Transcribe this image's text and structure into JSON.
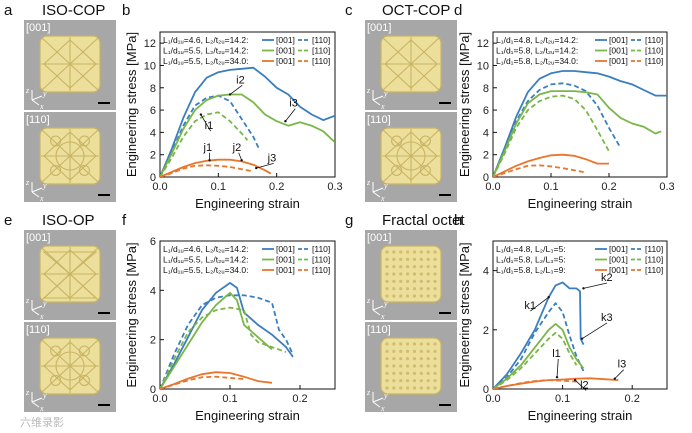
{
  "colors": {
    "blue": "#3a7ebf",
    "green": "#7ab648",
    "orange": "#e8762c",
    "photo_bg": "#a7a7a7",
    "lattice_light": "#ecdf9c",
    "lattice_dark": "#c9b463"
  },
  "photos": [
    {
      "letter": "a",
      "title": "ISO-COP",
      "views": [
        "[001]",
        "[110]"
      ],
      "axes": [
        "z",
        "y",
        "x"
      ]
    },
    {
      "letter": "c",
      "title": "OCT-COP",
      "views": [
        "[001]",
        "[110]"
      ],
      "axes": [
        "z",
        "y",
        "x"
      ]
    },
    {
      "letter": "e",
      "title": "ISO-OP",
      "views": [
        "[001]",
        "[110]"
      ],
      "axes": [
        "z",
        "y",
        "x"
      ]
    },
    {
      "letter": "g",
      "title": "Fractal octet",
      "views": [
        "[001]",
        "[110]"
      ],
      "axes": [
        "z",
        "y",
        "x"
      ]
    }
  ],
  "chart_data": [
    {
      "letter": "b",
      "type": "line",
      "xlabel": "Engineering strain",
      "ylabel": "Engineering stress [MPa]",
      "xlim": [
        0,
        0.3
      ],
      "ylim": [
        0,
        13
      ],
      "xticks": [
        "0.0",
        "0.1",
        "0.2",
        "0.3"
      ],
      "yticks": [
        "0",
        "2",
        "4",
        "6",
        "8",
        "10",
        "12"
      ],
      "legend": [
        {
          "label": "L₁/d₁ᵤ=4.6, L₂/t₂ᵤ=14.2:",
          "c": "blue"
        },
        {
          "label": "L₁/d₁ᵤ=5.5, L₂/t₂ᵤ=14.2:",
          "c": "green"
        },
        {
          "label": "L₁/d₁ᵤ=5.5, L₂/t₂ᵤ=34.0:",
          "c": "orange"
        }
      ],
      "legend_solid": "[001]",
      "legend_dashed": "[110]",
      "series": [
        {
          "name": "blue [001]",
          "c": "blue",
          "dash": false,
          "x": [
            0,
            0.02,
            0.04,
            0.06,
            0.08,
            0.1,
            0.12,
            0.14,
            0.16,
            0.18,
            0.2,
            0.22,
            0.24,
            0.26,
            0.28,
            0.3
          ],
          "y": [
            0,
            2.5,
            5.3,
            7.6,
            8.9,
            9.4,
            9.6,
            9.7,
            9.8,
            9.0,
            8.0,
            7.4,
            6.3,
            5.6,
            5.1,
            5.5
          ]
        },
        {
          "name": "blue [110]",
          "c": "blue",
          "dash": true,
          "x": [
            0,
            0.02,
            0.04,
            0.06,
            0.08,
            0.1,
            0.12,
            0.14,
            0.16,
            0.17
          ],
          "y": [
            0,
            2.2,
            4.6,
            6.4,
            7.1,
            7.3,
            6.8,
            5.2,
            3.6,
            2.5
          ]
        },
        {
          "name": "green [001]",
          "c": "green",
          "dash": false,
          "x": [
            0,
            0.02,
            0.04,
            0.06,
            0.08,
            0.1,
            0.12,
            0.14,
            0.16,
            0.18,
            0.2,
            0.22,
            0.24,
            0.26,
            0.28,
            0.3
          ],
          "y": [
            0,
            2.1,
            4.3,
            6.0,
            6.9,
            7.3,
            7.4,
            7.4,
            6.7,
            5.6,
            5.0,
            4.6,
            4.9,
            4.6,
            4.1,
            3.1
          ]
        },
        {
          "name": "green [110]",
          "c": "green",
          "dash": true,
          "x": [
            0,
            0.02,
            0.04,
            0.06,
            0.08,
            0.1,
            0.12,
            0.14,
            0.15
          ],
          "y": [
            0,
            1.7,
            3.6,
            5.0,
            5.6,
            5.8,
            5.0,
            3.9,
            3.3
          ]
        },
        {
          "name": "orange [001]",
          "c": "orange",
          "dash": false,
          "x": [
            0,
            0.02,
            0.04,
            0.06,
            0.08,
            0.1,
            0.12,
            0.14,
            0.16,
            0.18,
            0.19
          ],
          "y": [
            0,
            0.45,
            0.9,
            1.25,
            1.45,
            1.55,
            1.55,
            1.4,
            1.1,
            0.6,
            0.3
          ]
        },
        {
          "name": "orange [110]",
          "c": "orange",
          "dash": true,
          "x": [
            0,
            0.02,
            0.04,
            0.06,
            0.08,
            0.1,
            0.12,
            0.14,
            0.16
          ],
          "y": [
            0,
            0.35,
            0.75,
            1.0,
            1.05,
            1.0,
            0.9,
            0.7,
            0.5
          ]
        }
      ],
      "annotations": [
        {
          "text": "i2",
          "x": 0.134,
          "y": 8.4,
          "ax": 0.12,
          "ay": 7.4
        },
        {
          "text": "i3",
          "x": 0.225,
          "y": 6.3,
          "ax": 0.215,
          "ay": 5.0
        },
        {
          "text": "i1",
          "x": 0.08,
          "y": 4.3,
          "ax": 0.07,
          "ay": 5.6
        },
        {
          "text": "j1",
          "x": 0.078,
          "y": 2.35,
          "ax": 0.085,
          "ay": 1.5
        },
        {
          "text": "j2",
          "x": 0.128,
          "y": 2.35,
          "ax": 0.14,
          "ay": 1.5
        },
        {
          "text": "j3",
          "x": 0.188,
          "y": 1.4,
          "ax": 0.165,
          "ay": 0.8
        }
      ]
    },
    {
      "letter": "d",
      "type": "line",
      "xlabel": "Engineering strain",
      "ylabel": "Engineering stress [MPa]",
      "xlim": [
        0,
        0.3
      ],
      "ylim": [
        0,
        13
      ],
      "xticks": [
        "0.0",
        "0.1",
        "0.2",
        "0.3"
      ],
      "yticks": [
        "0",
        "2",
        "4",
        "6",
        "8",
        "10",
        "12"
      ],
      "legend": [
        {
          "label": "L₁/d₁=4.8, L₂/t₂ᵤ=14.2:",
          "c": "blue"
        },
        {
          "label": "L₁/d₁=5.8, L₂/t₂ᵤ=14.2:",
          "c": "green"
        },
        {
          "label": "L₁/d₁=5.8, L₂/t₂ᵤ=34.0:",
          "c": "orange"
        }
      ],
      "legend_solid": "[001]",
      "legend_dashed": "[110]",
      "series": [
        {
          "name": "blue [001]",
          "c": "blue",
          "dash": false,
          "x": [
            0,
            0.02,
            0.04,
            0.06,
            0.08,
            0.1,
            0.12,
            0.14,
            0.16,
            0.18,
            0.2,
            0.22,
            0.24,
            0.26,
            0.28,
            0.3
          ],
          "y": [
            0,
            2.6,
            5.4,
            7.6,
            8.8,
            9.3,
            9.5,
            9.5,
            9.4,
            9.3,
            9.0,
            8.6,
            8.3,
            7.8,
            7.3,
            7.3
          ]
        },
        {
          "name": "blue [110]",
          "c": "blue",
          "dash": true,
          "x": [
            0,
            0.02,
            0.04,
            0.06,
            0.08,
            0.1,
            0.12,
            0.14,
            0.16,
            0.18,
            0.2,
            0.22
          ],
          "y": [
            0,
            2.5,
            5.0,
            6.8,
            7.8,
            8.3,
            8.4,
            8.2,
            7.7,
            6.4,
            4.4,
            2.6
          ]
        },
        {
          "name": "green [001]",
          "c": "green",
          "dash": false,
          "x": [
            0,
            0.02,
            0.04,
            0.06,
            0.08,
            0.1,
            0.12,
            0.14,
            0.16,
            0.18,
            0.2,
            0.22,
            0.24,
            0.26,
            0.28,
            0.29
          ],
          "y": [
            0,
            2.3,
            4.8,
            6.6,
            7.4,
            7.7,
            7.7,
            7.7,
            7.6,
            7.4,
            6.2,
            5.3,
            4.8,
            4.5,
            3.9,
            4.1
          ]
        },
        {
          "name": "green [110]",
          "c": "green",
          "dash": true,
          "x": [
            0,
            0.02,
            0.04,
            0.06,
            0.08,
            0.1,
            0.12,
            0.14,
            0.16,
            0.18,
            0.2
          ],
          "y": [
            0,
            2.1,
            4.4,
            6.0,
            6.8,
            7.2,
            7.3,
            7.0,
            6.0,
            4.2,
            2.3
          ]
        },
        {
          "name": "orange [001]",
          "c": "orange",
          "dash": false,
          "x": [
            0,
            0.02,
            0.04,
            0.06,
            0.08,
            0.1,
            0.12,
            0.14,
            0.16,
            0.18,
            0.2
          ],
          "y": [
            0,
            0.5,
            1.0,
            1.4,
            1.7,
            1.95,
            2.0,
            1.9,
            1.6,
            1.2,
            1.2
          ]
        },
        {
          "name": "orange [110]",
          "c": "orange",
          "dash": true,
          "x": [
            0,
            0.02,
            0.04,
            0.06,
            0.08,
            0.1,
            0.12,
            0.14,
            0.16
          ],
          "y": [
            0,
            0.35,
            0.7,
            1.0,
            1.05,
            0.95,
            0.8,
            0.6,
            0.4
          ]
        }
      ],
      "annotations": []
    },
    {
      "letter": "f",
      "type": "line",
      "xlabel": "Engineering strain",
      "ylabel": "Engineering stress [MPa]",
      "xlim": [
        0,
        0.25
      ],
      "ylim": [
        0,
        6
      ],
      "xticks": [
        "0.0",
        "0.1",
        "0.2"
      ],
      "yticks": [
        "0",
        "2",
        "4",
        "6"
      ],
      "legend": [
        {
          "label": "L₁/d₁ᵤ=4.6, L₂/t₂ᵤ=14.2:",
          "c": "blue"
        },
        {
          "label": "L₁/d₁ᵤ=5.5, L₂/t₂ᵤ=14.2:",
          "c": "green"
        },
        {
          "label": "L₁/d₁ᵤ=5.5, L₂/t₂ᵤ=34.0:",
          "c": "orange"
        }
      ],
      "legend_solid": "[001]",
      "legend_dashed": "[110]",
      "series": [
        {
          "name": "blue [001]",
          "c": "blue",
          "dash": false,
          "x": [
            0,
            0.02,
            0.04,
            0.06,
            0.08,
            0.1,
            0.11,
            0.12,
            0.14,
            0.16,
            0.18,
            0.19
          ],
          "y": [
            0,
            1.0,
            2.1,
            3.2,
            3.9,
            4.3,
            4.1,
            3.1,
            2.6,
            2.2,
            1.7,
            1.3
          ]
        },
        {
          "name": "blue [110]",
          "c": "blue",
          "dash": true,
          "x": [
            0,
            0.02,
            0.04,
            0.06,
            0.08,
            0.1,
            0.12,
            0.14,
            0.16,
            0.17,
            0.18,
            0.19
          ],
          "y": [
            0,
            1.4,
            2.6,
            3.4,
            3.7,
            3.8,
            3.8,
            3.7,
            3.5,
            2.4,
            2.0,
            1.4
          ]
        },
        {
          "name": "green [001]",
          "c": "green",
          "dash": false,
          "x": [
            0,
            0.02,
            0.04,
            0.06,
            0.08,
            0.1,
            0.11,
            0.12,
            0.14,
            0.16
          ],
          "y": [
            0,
            0.9,
            1.8,
            2.7,
            3.4,
            3.9,
            3.6,
            2.6,
            2.1,
            1.6
          ]
        },
        {
          "name": "green [110]",
          "c": "green",
          "dash": true,
          "x": [
            0,
            0.02,
            0.04,
            0.06,
            0.08,
            0.1,
            0.12,
            0.13,
            0.14,
            0.16,
            0.18
          ],
          "y": [
            0,
            1.2,
            2.3,
            2.9,
            3.2,
            3.3,
            3.2,
            2.2,
            1.9,
            1.7,
            1.5
          ]
        },
        {
          "name": "orange [001]",
          "c": "orange",
          "dash": false,
          "x": [
            0,
            0.02,
            0.04,
            0.06,
            0.08,
            0.1,
            0.12,
            0.14,
            0.16
          ],
          "y": [
            0,
            0.2,
            0.42,
            0.6,
            0.68,
            0.65,
            0.5,
            0.32,
            0.25
          ]
        },
        {
          "name": "orange [110]",
          "c": "orange",
          "dash": true,
          "x": [
            0,
            0.02,
            0.04,
            0.06,
            0.08,
            0.1,
            0.12
          ],
          "y": [
            0,
            0.18,
            0.35,
            0.48,
            0.5,
            0.45,
            0.4
          ]
        }
      ],
      "annotations": []
    },
    {
      "letter": "h",
      "type": "line",
      "xlabel": "Engineering strain",
      "ylabel": "Engineering stress [MPa]",
      "xlim": [
        0,
        0.25
      ],
      "ylim": [
        0,
        5
      ],
      "xticks": [
        "0.0",
        "0.1",
        "0.2"
      ],
      "yticks": [
        "0",
        "2",
        "4"
      ],
      "legend": [
        {
          "label": "L₁/d₁=4.8, L₂/L₃=5:",
          "c": "blue"
        },
        {
          "label": "L₁/d₁=5.8, L₂/L₃=5:",
          "c": "green"
        },
        {
          "label": "L₁/d₁=5.8, L₂/L₃=9:",
          "c": "orange"
        }
      ],
      "legend_solid": "[001]",
      "legend_dashed": "[110]",
      "series": [
        {
          "name": "blue [001]",
          "c": "blue",
          "dash": false,
          "x": [
            0,
            0.02,
            0.04,
            0.06,
            0.08,
            0.09,
            0.1,
            0.11,
            0.12,
            0.125,
            0.126,
            0.13
          ],
          "y": [
            0,
            0.5,
            1.2,
            2.0,
            3.1,
            3.5,
            3.6,
            3.4,
            3.4,
            3.3,
            1.7,
            1.5
          ]
        },
        {
          "name": "blue [110]",
          "c": "blue",
          "dash": true,
          "x": [
            0,
            0.02,
            0.04,
            0.06,
            0.08,
            0.09,
            0.1,
            0.11,
            0.12,
            0.13
          ],
          "y": [
            0,
            0.4,
            1.0,
            1.9,
            2.6,
            2.9,
            2.6,
            1.8,
            1.1,
            0.6
          ]
        },
        {
          "name": "green [001]",
          "c": "green",
          "dash": false,
          "x": [
            0,
            0.02,
            0.04,
            0.06,
            0.08,
            0.09,
            0.1,
            0.11,
            0.12,
            0.13
          ],
          "y": [
            0,
            0.35,
            0.8,
            1.4,
            2.0,
            2.2,
            2.0,
            1.4,
            1.0,
            0.7
          ]
        },
        {
          "name": "green [110]",
          "c": "green",
          "dash": true,
          "x": [
            0,
            0.02,
            0.04,
            0.06,
            0.08,
            0.09,
            0.1,
            0.11,
            0.12
          ],
          "y": [
            0,
            0.3,
            0.7,
            1.2,
            1.7,
            1.9,
            1.7,
            1.2,
            0.8
          ]
        },
        {
          "name": "orange [001]",
          "c": "orange",
          "dash": false,
          "x": [
            0,
            0.02,
            0.04,
            0.06,
            0.08,
            0.1,
            0.12,
            0.14,
            0.16,
            0.18
          ],
          "y": [
            0,
            0.1,
            0.18,
            0.25,
            0.3,
            0.32,
            0.35,
            0.36,
            0.33,
            0.3
          ]
        },
        {
          "name": "orange [110]",
          "c": "orange",
          "dash": true,
          "x": [
            0,
            0.02,
            0.04,
            0.06,
            0.08,
            0.1,
            0.12
          ],
          "y": [
            0,
            0.1,
            0.2,
            0.27,
            0.3,
            0.28,
            0.25
          ]
        }
      ],
      "annotations": [
        {
          "text": "k2",
          "x": 0.158,
          "y": 3.65,
          "ax": 0.13,
          "ay": 3.4
        },
        {
          "text": "k1",
          "x": 0.048,
          "y": 2.7,
          "ax": 0.08,
          "ay": 3.1
        },
        {
          "text": "k3",
          "x": 0.158,
          "y": 2.3,
          "ax": 0.128,
          "ay": 1.7
        },
        {
          "text": "l1",
          "x": 0.088,
          "y": 1.08,
          "ax": 0.092,
          "ay": 0.4
        },
        {
          "text": "l2",
          "x": 0.128,
          "y": 0.02,
          "ax": 0.118,
          "ay": 0.3
        },
        {
          "text": "l3",
          "x": 0.182,
          "y": 0.72,
          "ax": 0.175,
          "ay": 0.35
        }
      ]
    }
  ],
  "watermark": "六维录影"
}
